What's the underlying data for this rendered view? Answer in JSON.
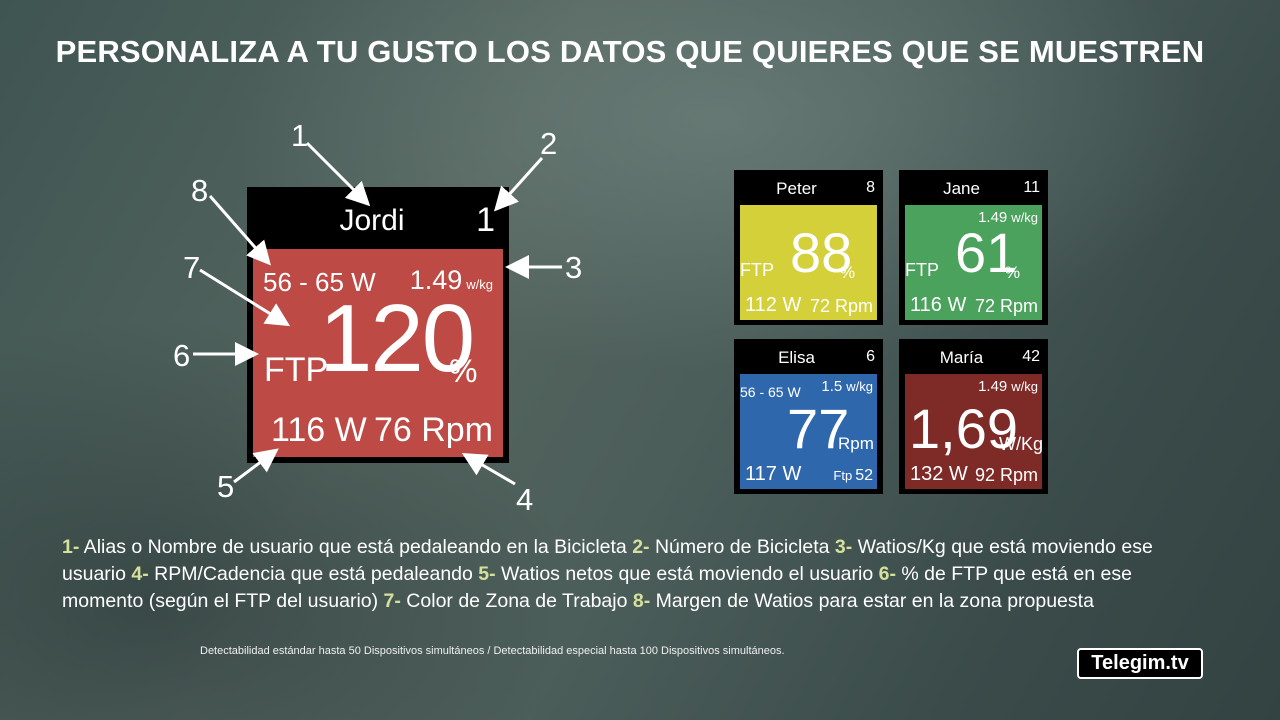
{
  "title": "PERSONALIZA A TU GUSTO LOS DATOS QUE QUIERES QUE SE MUESTREN",
  "big_tile": {
    "name": "Jordi",
    "bike_number": "1",
    "range": "56 - 65 W",
    "wkg_value": "1.49",
    "wkg_unit": "w/kg",
    "ftp_label": "FTP",
    "ftp_percent": "120",
    "percent_sign": "%",
    "watts": "116 W",
    "rpm": "76 Rpm",
    "color": "#be4a45"
  },
  "callouts": [
    "1",
    "2",
    "3",
    "4",
    "5",
    "6",
    "7",
    "8"
  ],
  "tiles": [
    {
      "name": "Peter",
      "number": "8",
      "ftp_label": "FTP",
      "value": "88",
      "unit": "%",
      "watts": "112 W",
      "rpm": "72 Rpm",
      "color": "#d4d03a"
    },
    {
      "name": "Jane",
      "number": "11",
      "wkg_value": "1.49",
      "wkg_unit": "w/kg",
      "ftp_label": "FTP",
      "value": "61",
      "unit": "%",
      "watts": "116 W",
      "rpm": "72 Rpm",
      "color": "#4aa25d"
    },
    {
      "name": "Elisa",
      "number": "6",
      "range": "56 - 65 W",
      "wkg_value": "1.5",
      "wkg_unit": "w/kg",
      "value": "77",
      "unit": "Rpm",
      "watts": "117 W",
      "ftp_small_label": "Ftp",
      "ftp_small_value": "52",
      "color": "#2f67ad"
    },
    {
      "name": "María",
      "number": "42",
      "wkg_value": "1.49",
      "wkg_unit": "w/kg",
      "value": "1,69",
      "unit": "W/Kg",
      "watts": "132 W",
      "rpm": "92 Rpm",
      "color": "#7e2a27"
    }
  ],
  "description": [
    {
      "key": "1-",
      "text": " Alias o Nombre de usuario que está pedaleando en la Bicicleta  "
    },
    {
      "key": "2-",
      "text": " Número de Bicicleta "
    },
    {
      "key": "3-",
      "text": "  Watios/Kg que está moviendo ese usuario  "
    },
    {
      "key": "4-",
      "text": " RPM/Cadencia que está pedaleando  "
    },
    {
      "key": "5-",
      "text": " Watios netos que está moviendo el usuario  "
    },
    {
      "key": "6-",
      "text": " % de FTP que está en ese momento (según el FTP del usuario)  "
    },
    {
      "key": "7-",
      "text": " Color de Zona de Trabajo "
    },
    {
      "key": "8-",
      "text": " Margen de Watios para estar en la zona propuesta"
    }
  ],
  "footnote": "Detectabilidad estándar hasta 50 Dispositivos simultáneos /  Detectabilidad especial hasta 100 Dispositivos simultáneos.",
  "logo": "Telegim.tv"
}
